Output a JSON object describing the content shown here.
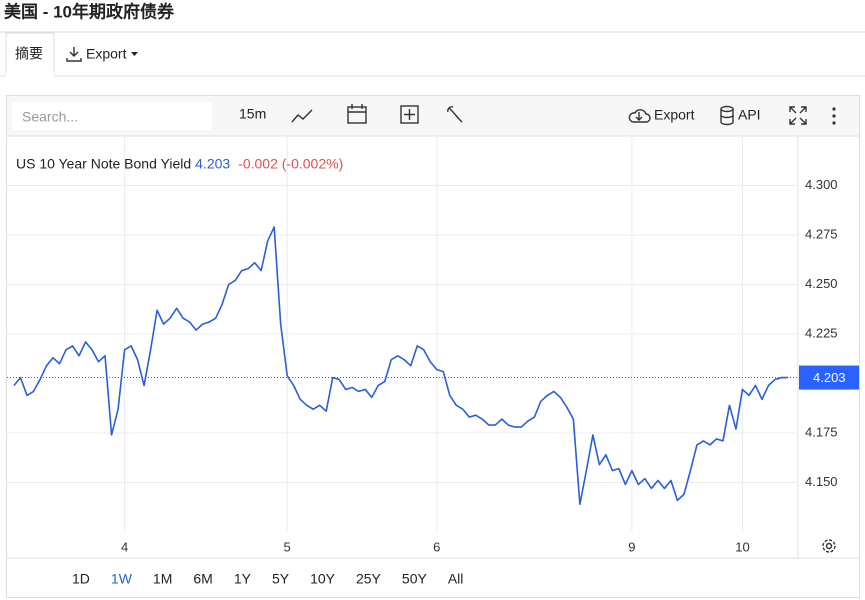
{
  "header": {
    "title": "美国 - 10年期政府债券",
    "tabs": [
      "摘要",
      "Export"
    ]
  },
  "toolbar": {
    "search_placeholder": "Search...",
    "interval": "15m",
    "export": "Export",
    "api": "API"
  },
  "chart_data": {
    "type": "line",
    "series": [
      {
        "name": "US 10 Year Note Bond Yield",
        "color": "#2a5fd6",
        "values": [
          4.199,
          4.203,
          4.194,
          4.196,
          4.202,
          4.209,
          4.213,
          4.21,
          4.217,
          4.219,
          4.214,
          4.221,
          4.217,
          4.211,
          4.214,
          4.174,
          4.187,
          4.217,
          4.219,
          4.212,
          4.199,
          4.217,
          4.237,
          4.23,
          4.233,
          4.238,
          4.233,
          4.231,
          4.227,
          4.23,
          4.231,
          4.233,
          4.24,
          4.25,
          4.252,
          4.257,
          4.258,
          4.261,
          4.257,
          4.272,
          4.279,
          4.23,
          4.204,
          4.199,
          4.192,
          4.189,
          4.187,
          4.189,
          4.186,
          4.203,
          4.202,
          4.197,
          4.198,
          4.196,
          4.197,
          4.193,
          4.199,
          4.201,
          4.212,
          4.214,
          4.212,
          4.209,
          4.219,
          4.217,
          4.211,
          4.207,
          4.206,
          4.194,
          4.189,
          4.187,
          4.183,
          4.184,
          4.182,
          4.179,
          4.179,
          4.182,
          4.179,
          4.178,
          4.178,
          4.181,
          4.183,
          4.191,
          4.194,
          4.196,
          4.193,
          4.188,
          4.182,
          4.139,
          4.156,
          4.174,
          4.159,
          4.164,
          4.156,
          4.157,
          4.149,
          4.156,
          4.149,
          4.152,
          4.147,
          4.151,
          4.147,
          4.151,
          4.141,
          4.144,
          4.156,
          4.169,
          4.171,
          4.169,
          4.172,
          4.171,
          4.189,
          4.177,
          4.197,
          4.194,
          4.199,
          4.192,
          4.199,
          4.202,
          4.203,
          4.203
        ]
      }
    ],
    "categories": [
      null,
      null,
      null,
      null,
      null,
      null,
      null,
      null,
      null,
      null,
      null,
      null,
      null,
      null,
      null,
      null,
      null,
      "4",
      null,
      null,
      null,
      null,
      null,
      null,
      null,
      null,
      null,
      null,
      null,
      null,
      null,
      null,
      null,
      null,
      null,
      null,
      null,
      null,
      null,
      null,
      null,
      null,
      "5",
      null,
      null,
      null,
      null,
      null,
      null,
      null,
      null,
      null,
      null,
      null,
      null,
      null,
      null,
      null,
      null,
      null,
      null,
      null,
      null,
      null,
      null,
      "6",
      null,
      null,
      null,
      null,
      null,
      null,
      null,
      null,
      null,
      null,
      null,
      null,
      null,
      null,
      null,
      null,
      null,
      null,
      null,
      null,
      null,
      null,
      null,
      null,
      null,
      null,
      null,
      null,
      null,
      "9",
      null,
      null,
      null,
      null,
      null,
      null,
      null,
      null,
      null,
      null,
      null,
      null,
      null,
      null,
      null,
      null,
      "10",
      null,
      null,
      null,
      null,
      null,
      null,
      null
    ],
    "last_value": 4.203,
    "change": "-0.002 (-0.002%)",
    "ylim": [
      4.125,
      4.325
    ],
    "yticks": [
      {
        "value": 4.15,
        "label": "4.150"
      },
      4.175,
      4.225,
      {
        "value": 4.25,
        "label": "4.250"
      },
      4.275,
      {
        "value": 4.3,
        "label": "4.300"
      }
    ],
    "grid": true
  },
  "ranges": {
    "buttons": [
      "1D",
      "1W",
      "1M",
      "6M",
      "1Y",
      "5Y",
      "10Y",
      "25Y",
      "50Y",
      "All"
    ],
    "active": 1
  }
}
